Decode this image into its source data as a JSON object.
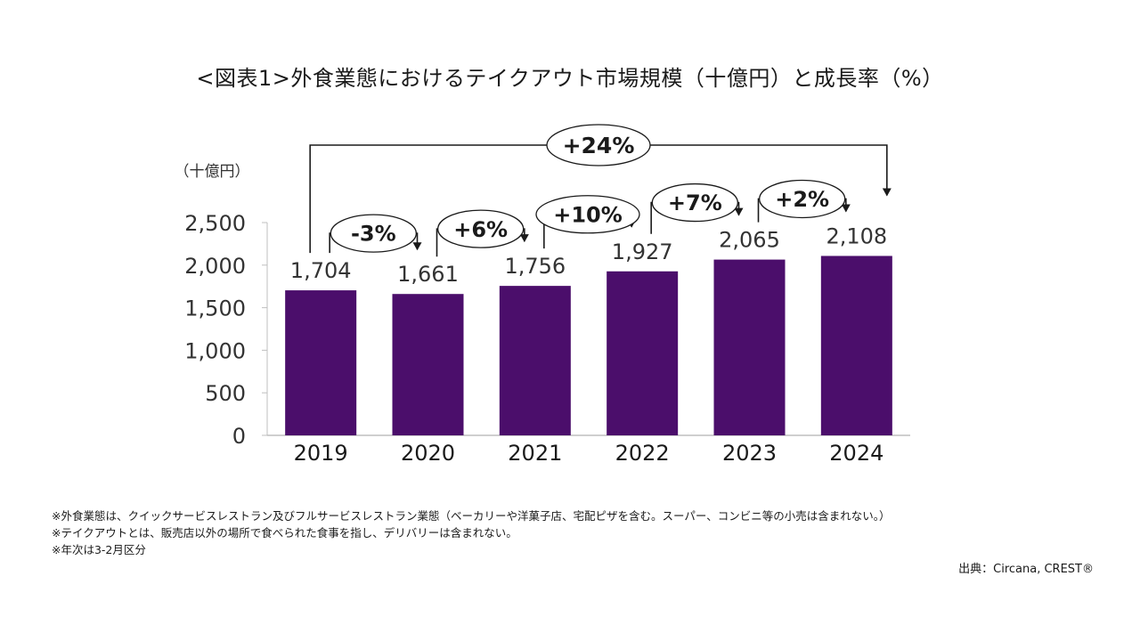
{
  "title": "<図表1>外食業態におけるテイクアウト市場規模（十億円）と成長率（%）",
  "chart_data": {
    "type": "bar",
    "ylabel": "（十億円）",
    "categories": [
      "2019",
      "2020",
      "2021",
      "2022",
      "2023",
      "2024"
    ],
    "values": [
      1704,
      1661,
      1756,
      1927,
      2065,
      2108
    ],
    "value_labels": [
      "1,704",
      "1,661",
      "1,756",
      "1,927",
      "2,065",
      "2,108"
    ],
    "ylim": [
      0,
      2500
    ],
    "yticks": [
      0,
      500,
      1000,
      1500,
      2000,
      2500
    ],
    "ytick_labels": [
      "0",
      "500",
      "1,000",
      "1,500",
      "2,000",
      "2,500"
    ],
    "bar_color": "#4b0e6b",
    "grid": false,
    "growth_annotations": [
      {
        "label": "-3%",
        "from": "2019",
        "to": "2020"
      },
      {
        "label": "+6%",
        "from": "2020",
        "to": "2021"
      },
      {
        "label": "+10%",
        "from": "2021",
        "to": "2022"
      },
      {
        "label": "+7%",
        "from": "2022",
        "to": "2023"
      },
      {
        "label": "+2%",
        "from": "2023",
        "to": "2024"
      },
      {
        "label": "+24%",
        "from": "2019",
        "to": "2024"
      }
    ]
  },
  "notes": [
    "※外食業態は、クイックサービスレストラン及びフルサービスレストラン業態（ベーカリーや洋菓子店、宅配ピザを含む。スーパー、コンビニ等の小売は含まれない。）",
    "※テイクアウトとは、販売店以外の場所で食べられた食事を指し、デリバリーは含まれない。",
    "※年次は3-2月区分"
  ],
  "source": "出典：Circana, CREST®"
}
